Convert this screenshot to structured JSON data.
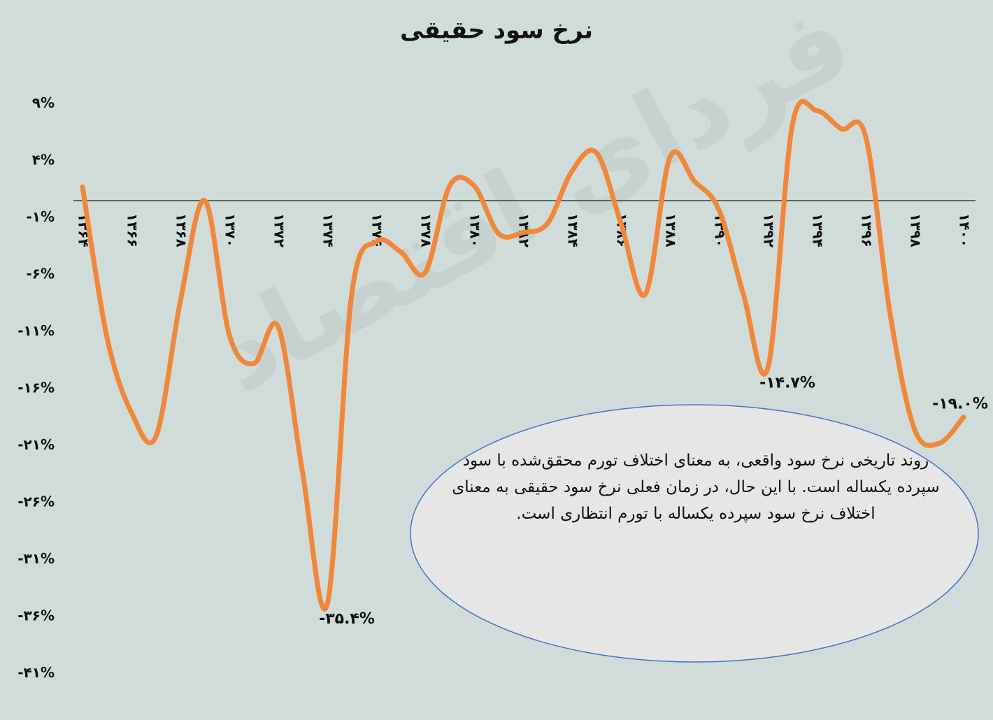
{
  "chart_data": {
    "type": "line",
    "title": "نرخ سود حقیقی",
    "watermark": "فردای اقتصاد",
    "annotation": "روند تاریخی نرخ سود واقعی، به معنای اختلاف تورم محقق‌شده با سود سپرده یکساله است. با این حال، در زمان فعلی نرخ سود حقیقی به معنای اختلاف نرخ سود سپرده یکساله با تورم انتظاری است.",
    "categories": [
      "۱۳۶۴",
      null,
      "۱۳۶۶",
      null,
      "۱۳۶۸",
      null,
      "۱۳۷۰",
      null,
      "۱۳۷۲",
      null,
      "۱۳۷۴",
      null,
      "۱۳۷۶",
      null,
      "۱۳۷۸",
      null,
      "۱۳۸۰",
      null,
      "۱۳۸۲",
      null,
      "۱۳۸۴",
      null,
      "۱۳۸۶",
      null,
      "۱۳۸۸",
      null,
      "۱۳۹۰",
      null,
      "۱۳۹۲",
      null,
      "۱۳۹۴",
      null,
      "۱۳۹۶",
      null,
      "۱۳۹۸",
      null,
      "۱۴۰۰"
    ],
    "series": [
      {
        "name": "نرخ سود حقیقی",
        "color": "#f0873a",
        "values": [
          1.2,
          -12,
          -18.6,
          -20.7,
          -8.8,
          0,
          -11.8,
          -14.3,
          -11.1,
          -24,
          -35.4,
          -8.2,
          -3.6,
          -4.5,
          -6.3,
          1.3,
          1.3,
          -2.9,
          -2.8,
          -2,
          2.6,
          4.2,
          -2,
          -8.2,
          3.8,
          1.7,
          -0.8,
          -8.2,
          -14.7,
          6.6,
          7.9,
          6.3,
          5.6,
          -10,
          -20.1,
          -21.3,
          -19.0
        ],
        "value_labels": [
          null,
          null,
          null,
          null,
          null,
          null,
          null,
          null,
          null,
          null,
          "-۳۵.۴%",
          null,
          null,
          null,
          null,
          null,
          null,
          null,
          null,
          null,
          null,
          null,
          null,
          null,
          null,
          null,
          null,
          null,
          "-۱۴.۷%",
          null,
          null,
          null,
          null,
          null,
          null,
          null,
          "-۱۹.۰%"
        ]
      }
    ],
    "ylim": [
      -41,
      9
    ],
    "yticks": [
      {
        "value": 9,
        "label": "۹%"
      },
      {
        "value": 4,
        "label": "۴%"
      },
      {
        "value": -1,
        "label": "-۱%"
      },
      {
        "value": -6,
        "label": "-۶%"
      },
      {
        "value": -11,
        "label": "-۱۱%"
      },
      {
        "value": -16,
        "label": "-۱۶%"
      },
      {
        "value": -21,
        "label": "-۲۱%"
      },
      {
        "value": -26,
        "label": "-۲۶%"
      },
      {
        "value": -31,
        "label": "-۳۱%"
      },
      {
        "value": -36,
        "label": "-۳۶%"
      },
      {
        "value": -41,
        "label": "-۴۱%"
      }
    ],
    "zero_line_color": "#2f4a22"
  }
}
